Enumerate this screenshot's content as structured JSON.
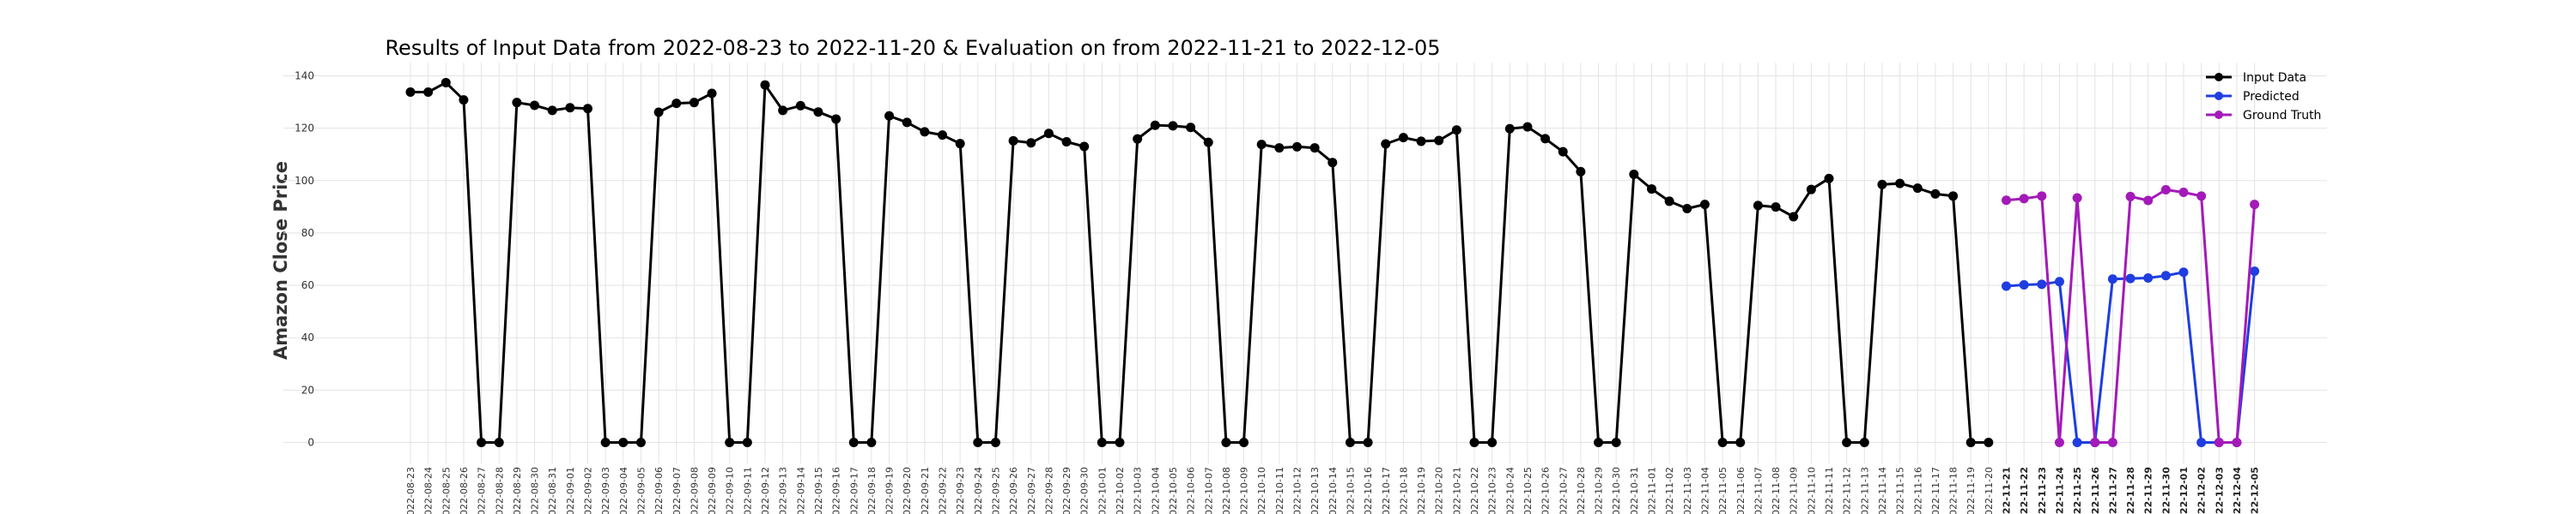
{
  "chart_data": {
    "type": "line",
    "title": "Results of Input Data from 2022-08-23 to 2022-11-20 & Evaluation on from 2022-11-21 to 2022-12-05",
    "xlabel": "",
    "ylabel": "Amazon Close Price",
    "ylim": [
      -8,
      145
    ],
    "yticks": [
      0,
      20,
      40,
      60,
      80,
      100,
      120,
      140
    ],
    "grid": true,
    "legend_position": "top-right",
    "x": [
      "2022-08-23",
      "2022-08-24",
      "2022-08-25",
      "2022-08-26",
      "2022-08-27",
      "2022-08-28",
      "2022-08-29",
      "2022-08-30",
      "2022-08-31",
      "2022-09-01",
      "2022-09-02",
      "2022-09-03",
      "2022-09-04",
      "2022-09-05",
      "2022-09-06",
      "2022-09-07",
      "2022-09-08",
      "2022-09-09",
      "2022-09-10",
      "2022-09-11",
      "2022-09-12",
      "2022-09-13",
      "2022-09-14",
      "2022-09-15",
      "2022-09-16",
      "2022-09-17",
      "2022-09-18",
      "2022-09-19",
      "2022-09-20",
      "2022-09-21",
      "2022-09-22",
      "2022-09-23",
      "2022-09-24",
      "2022-09-25",
      "2022-09-26",
      "2022-09-27",
      "2022-09-28",
      "2022-09-29",
      "2022-09-30",
      "2022-10-01",
      "2022-10-02",
      "2022-10-03",
      "2022-10-04",
      "2022-10-05",
      "2022-10-06",
      "2022-10-07",
      "2022-10-08",
      "2022-10-09",
      "2022-10-10",
      "2022-10-11",
      "2022-10-12",
      "2022-10-13",
      "2022-10-14",
      "2022-10-15",
      "2022-10-16",
      "2022-10-17",
      "2022-10-18",
      "2022-10-19",
      "2022-10-20",
      "2022-10-21",
      "2022-10-22",
      "2022-10-23",
      "2022-10-24",
      "2022-10-25",
      "2022-10-26",
      "2022-10-27",
      "2022-10-28",
      "2022-10-29",
      "2022-10-30",
      "2022-10-31",
      "2022-11-01",
      "2022-11-02",
      "2022-11-03",
      "2022-11-04",
      "2022-11-05",
      "2022-11-06",
      "2022-11-07",
      "2022-11-08",
      "2022-11-09",
      "2022-11-10",
      "2022-11-11",
      "2022-11-12",
      "2022-11-13",
      "2022-11-14",
      "2022-11-15",
      "2022-11-16",
      "2022-11-17",
      "2022-11-18",
      "2022-11-19",
      "2022-11-20",
      "2022-11-21",
      "2022-11-22",
      "2022-11-23",
      "2022-11-24",
      "2022-11-25",
      "2022-11-26",
      "2022-11-27",
      "2022-11-28",
      "2022-11-29",
      "2022-11-30",
      "2022-12-01",
      "2022-12-02",
      "2022-12-03",
      "2022-12-04",
      "2022-12-05"
    ],
    "x_tick_labels": [
      "2022-08-23",
      "2022-08-24",
      "2022-08-25",
      "2022-08-26",
      "2022-08-27",
      "2022-08-28",
      "2022-08-29",
      "2022-08-30",
      "2022-08-31",
      "2022-09-01",
      "2022-09-02",
      "2022-09-03",
      "2022-09-04",
      "2022-09-05",
      "2022-09-06",
      "2022-09-07",
      "2022-09-08",
      "2022-09-09",
      "2022-09-10",
      "2022-09-11",
      "2022-09-12",
      "2022-09-13",
      "2022-09-14",
      "2022-09-15",
      "2022-09-16",
      "2022-09-17",
      "2022-09-18",
      "2022-09-19",
      "2022-09-20",
      "2022-09-21",
      "2022-09-22",
      "2022-09-23",
      "2022-09-24",
      "2022-09-25",
      "2022-09-26",
      "2022-09-27",
      "2022-09-28",
      "2022-09-29",
      "2022-09-30",
      "2022-10-01",
      "2022-10-02",
      "2022-10-03",
      "2022-10-04",
      "2022-10-05",
      "2022-10-06",
      "2022-10-07",
      "2022-10-08",
      "2022-10-09",
      "2022-10-10",
      "2022-10-11",
      "2022-10-12",
      "2022-10-13",
      "2022-10-14",
      "2022-10-15",
      "2022-10-16",
      "2022-10-17",
      "2022-10-18",
      "2022-10-19",
      "2022-10-20",
      "2022-10-21",
      "2022-10-22",
      "2022-10-23",
      "2022-10-24",
      "2022-10-25",
      "2022-10-26",
      "2022-10-27",
      "2022-10-28",
      "2022-10-29",
      "2022-10-30",
      "2022-10-31",
      "2022-11-01",
      "2022-11-02",
      "2022-11-03",
      "2022-11-04",
      "2022-11-05",
      "2022-11-06",
      "2022-11-07",
      "2022-11-08",
      "2022-11-09",
      "2022-11-10",
      "2022-11-11",
      "2022-11-12",
      "2022-11-13",
      "2022-11-14",
      "2022-11-15",
      "2022-11-16",
      "2022-11-17",
      "2022-11-18",
      "2022-11-19",
      "2022-11-20",
      "2022-11-21",
      "2022-11-22",
      "2022-11-23",
      "2022-11-24",
      "2022-11-25",
      "2022-11-26",
      "2022-11-27",
      "2022-11-28",
      "2022-11-29",
      "2022-11-30",
      "2022-12-01",
      "2022-12-02",
      "2022-12-03",
      "2022-12-04",
      "2022-12-05"
    ],
    "series": [
      {
        "name": "Input Data",
        "color": "#000000",
        "x": [
          "2022-08-23",
          "2022-08-24",
          "2022-08-25",
          "2022-08-26",
          "2022-08-27",
          "2022-08-28",
          "2022-08-29",
          "2022-08-30",
          "2022-08-31",
          "2022-09-01",
          "2022-09-02",
          "2022-09-03",
          "2022-09-04",
          "2022-09-05",
          "2022-09-06",
          "2022-09-07",
          "2022-09-08",
          "2022-09-09",
          "2022-09-10",
          "2022-09-11",
          "2022-09-12",
          "2022-09-13",
          "2022-09-14",
          "2022-09-15",
          "2022-09-16",
          "2022-09-17",
          "2022-09-18",
          "2022-09-19",
          "2022-09-20",
          "2022-09-21",
          "2022-09-22",
          "2022-09-23",
          "2022-09-24",
          "2022-09-25",
          "2022-09-26",
          "2022-09-27",
          "2022-09-28",
          "2022-09-29",
          "2022-09-30",
          "2022-10-01",
          "2022-10-02",
          "2022-10-03",
          "2022-10-04",
          "2022-10-05",
          "2022-10-06",
          "2022-10-07",
          "2022-10-08",
          "2022-10-09",
          "2022-10-10",
          "2022-10-11",
          "2022-10-12",
          "2022-10-13",
          "2022-10-14",
          "2022-10-15",
          "2022-10-16",
          "2022-10-17",
          "2022-10-18",
          "2022-10-19",
          "2022-10-20",
          "2022-10-21",
          "2022-10-22",
          "2022-10-23",
          "2022-10-24",
          "2022-10-25",
          "2022-10-26",
          "2022-10-27",
          "2022-10-28",
          "2022-10-29",
          "2022-10-30",
          "2022-10-31",
          "2022-11-01",
          "2022-11-02",
          "2022-11-03",
          "2022-11-04",
          "2022-11-05",
          "2022-11-06",
          "2022-11-07",
          "2022-11-08",
          "2022-11-09",
          "2022-11-10",
          "2022-11-11",
          "2022-11-12",
          "2022-11-13",
          "2022-11-14",
          "2022-11-15",
          "2022-11-16",
          "2022-11-17",
          "2022-11-18",
          "2022-11-19",
          "2022-11-20"
        ],
        "values": [
          133.8,
          133.8,
          137.4,
          130.8,
          0,
          0,
          129.8,
          128.7,
          126.8,
          127.8,
          127.5,
          0,
          0,
          0,
          126.1,
          129.5,
          129.8,
          133.3,
          0,
          0,
          136.5,
          126.8,
          128.6,
          126.2,
          123.5,
          0,
          0,
          124.7,
          122.2,
          118.6,
          117.4,
          114.1,
          0,
          0,
          115.2,
          114.4,
          118.0,
          114.8,
          113.0,
          0,
          0,
          115.9,
          121.1,
          120.9,
          120.3,
          114.6,
          0,
          0,
          113.8,
          112.5,
          112.9,
          112.5,
          106.9,
          0,
          0,
          114.0,
          116.4,
          115.0,
          115.3,
          119.3,
          0,
          0,
          119.8,
          120.5,
          116.0,
          111.0,
          103.4,
          0,
          0,
          102.4,
          96.8,
          92.1,
          89.3,
          90.9,
          0,
          0,
          90.5,
          89.9,
          86.2,
          96.6,
          100.8,
          0,
          0,
          98.5,
          98.9,
          97.1,
          94.9,
          94.1,
          0,
          0
        ]
      },
      {
        "name": "Predicted",
        "color": "#1f3de0",
        "x": [
          "2022-11-21",
          "2022-11-22",
          "2022-11-23",
          "2022-11-24",
          "2022-11-25",
          "2022-11-26",
          "2022-11-27",
          "2022-11-28",
          "2022-11-29",
          "2022-11-30",
          "2022-12-01",
          "2022-12-02",
          "2022-12-03",
          "2022-12-04",
          "2022-12-05"
        ],
        "values": [
          59.7,
          60.2,
          60.4,
          61.4,
          0,
          0,
          62.4,
          62.6,
          62.8,
          63.7,
          65.0,
          0,
          0,
          0,
          65.4
        ]
      },
      {
        "name": "Ground Truth",
        "color": "#a31ab8",
        "x": [
          "2022-11-21",
          "2022-11-22",
          "2022-11-23",
          "2022-11-24",
          "2022-11-25",
          "2022-11-26",
          "2022-11-27",
          "2022-11-28",
          "2022-11-29",
          "2022-11-30",
          "2022-12-01",
          "2022-12-02",
          "2022-12-03",
          "2022-12-04",
          "2022-12-05"
        ],
        "values": [
          92.5,
          93.1,
          94.1,
          0,
          93.4,
          0,
          0,
          93.9,
          92.4,
          96.5,
          95.5,
          94.1,
          0,
          0,
          90.9
        ]
      }
    ]
  }
}
